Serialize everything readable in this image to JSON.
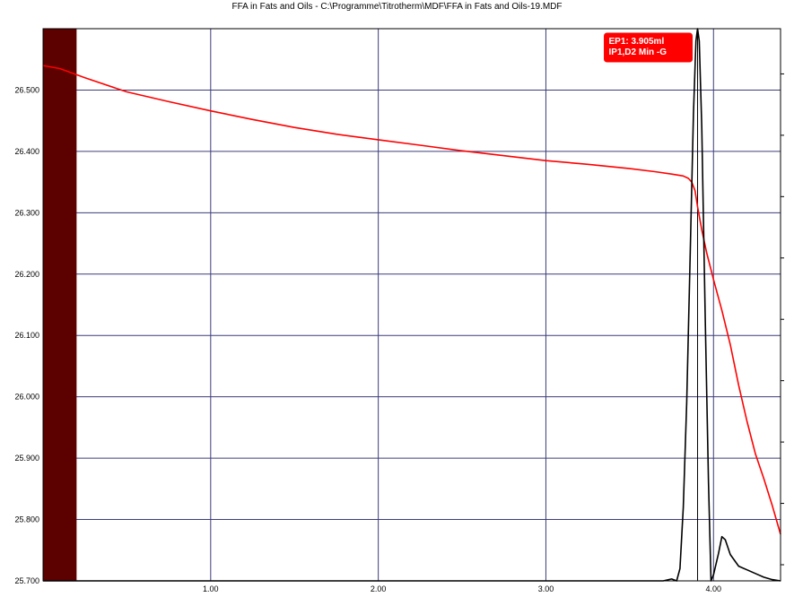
{
  "window_title": "FFA in Fats and Oils - C:\\Programme\\Titrotherm\\MDF\\FFA in Fats and Oils-19.MDF",
  "chart_data": {
    "type": "line",
    "title": "FFA in Fats and Oils - C:\\Programme\\Titrotherm\\MDF\\FFA in Fats and Oils-19.MDF",
    "xlabel": "",
    "ylabel": "",
    "xlim": [
      0.0,
      4.4
    ],
    "ylim": [
      25.7,
      26.6
    ],
    "x_ticks": [
      "1.00",
      "2.00",
      "3.00",
      "4.00"
    ],
    "x_tick_values": [
      1.0,
      2.0,
      3.0,
      4.0
    ],
    "y_ticks": [
      "25.700",
      "25.800",
      "25.900",
      "26.000",
      "26.100",
      "26.200",
      "26.300",
      "26.400",
      "26.500"
    ],
    "y_tick_values": [
      25.7,
      25.8,
      25.9,
      26.0,
      26.1,
      26.2,
      26.3,
      26.4,
      26.5
    ],
    "grid": true,
    "plot_background": "#ffffff",
    "grid_color": "#3c3c7a",
    "shaded_region": {
      "x_start": 0.0,
      "x_end": 0.2,
      "color": "#5c0000"
    },
    "series": [
      {
        "color": "#ff0000",
        "x": [
          0.0,
          0.1,
          0.25,
          0.5,
          0.75,
          1.0,
          1.25,
          1.5,
          1.75,
          2.0,
          2.25,
          2.5,
          2.75,
          3.0,
          3.25,
          3.5,
          3.65,
          3.75,
          3.82,
          3.85,
          3.87,
          3.89,
          3.905,
          3.93,
          3.96,
          4.0,
          4.05,
          4.1,
          4.15,
          4.2,
          4.25,
          4.3,
          4.35,
          4.4
        ],
        "y": [
          26.54,
          26.535,
          26.52,
          26.497,
          26.481,
          26.466,
          26.452,
          26.439,
          26.428,
          26.419,
          26.41,
          26.401,
          26.393,
          26.385,
          26.379,
          26.372,
          26.367,
          26.363,
          26.36,
          26.356,
          26.35,
          26.336,
          26.31,
          26.272,
          26.234,
          26.191,
          26.141,
          26.085,
          26.019,
          25.96,
          25.907,
          25.867,
          25.823,
          25.776
        ]
      },
      {
        "color": "#000000",
        "x": [
          0.0,
          3.5,
          3.7,
          3.75,
          3.78,
          3.8,
          3.82,
          3.84,
          3.86,
          3.88,
          3.895,
          3.905,
          3.915,
          3.93,
          3.95,
          3.97,
          3.985,
          4.0,
          4.03,
          4.05,
          4.07,
          4.1,
          4.15,
          4.2,
          4.25,
          4.3,
          4.35,
          4.4
        ],
        "y": [
          25.7,
          25.7,
          25.7,
          25.703,
          25.7,
          25.72,
          25.82,
          25.99,
          26.22,
          26.46,
          26.58,
          26.6,
          26.58,
          26.44,
          26.14,
          25.86,
          25.7,
          25.71,
          25.745,
          25.772,
          25.767,
          25.743,
          25.724,
          25.718,
          25.712,
          25.706,
          25.702,
          25.7
        ]
      }
    ],
    "vertical_marker": {
      "x": 3.905,
      "color": "#000000"
    },
    "annotation": {
      "lines": [
        "EP1: 3.905ml",
        "IP1,D2 Min -G"
      ],
      "background": "#ff0000",
      "text_color": "#ffffff",
      "position": "top-right"
    }
  }
}
